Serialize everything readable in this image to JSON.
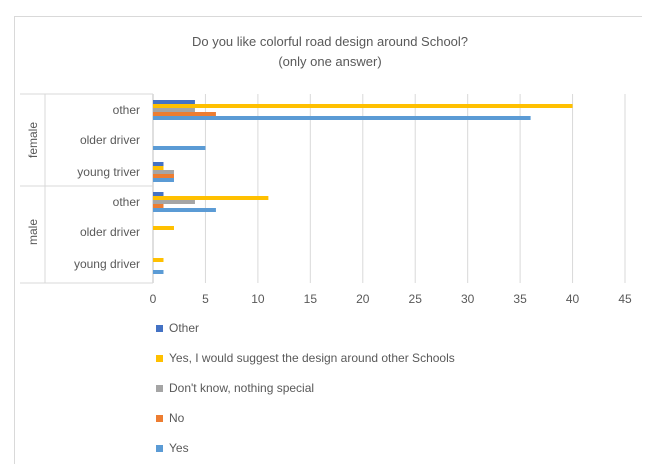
{
  "chart_data": {
    "type": "bar",
    "orientation": "horizontal",
    "title": "Do you like colorful road design around School?",
    "subtitle": "(only one answer)",
    "groups": [
      {
        "name": "female",
        "categories": [
          "other",
          "older driver",
          "young triver"
        ]
      },
      {
        "name": "male",
        "categories": [
          "other",
          "older driver",
          "young driver"
        ]
      }
    ],
    "categories": [
      "female / other",
      "female / older driver",
      "female / young triver",
      "male / other",
      "male / older driver",
      "male / young driver"
    ],
    "series": [
      {
        "name": "Other",
        "color": "#4472c4",
        "values": [
          4,
          0,
          1,
          1,
          0,
          0
        ]
      },
      {
        "name": "Yes, I would suggest the design around other Schools",
        "color": "#ffc000",
        "values": [
          40,
          0,
          1,
          11,
          2,
          1
        ]
      },
      {
        "name": "Don't know, nothing special",
        "color": "#a5a5a5",
        "values": [
          4,
          0,
          2,
          4,
          0,
          0
        ]
      },
      {
        "name": "No",
        "color": "#ed7d31",
        "values": [
          6,
          0,
          2,
          1,
          0,
          0
        ]
      },
      {
        "name": "Yes",
        "color": "#5b9bd5",
        "values": [
          36,
          5,
          2,
          6,
          0,
          1
        ]
      }
    ],
    "xlim": [
      0,
      45
    ],
    "xticks": [
      0,
      5,
      10,
      15,
      20,
      25,
      30,
      35,
      40,
      45
    ],
    "grid": true,
    "legend_position": "bottom"
  }
}
